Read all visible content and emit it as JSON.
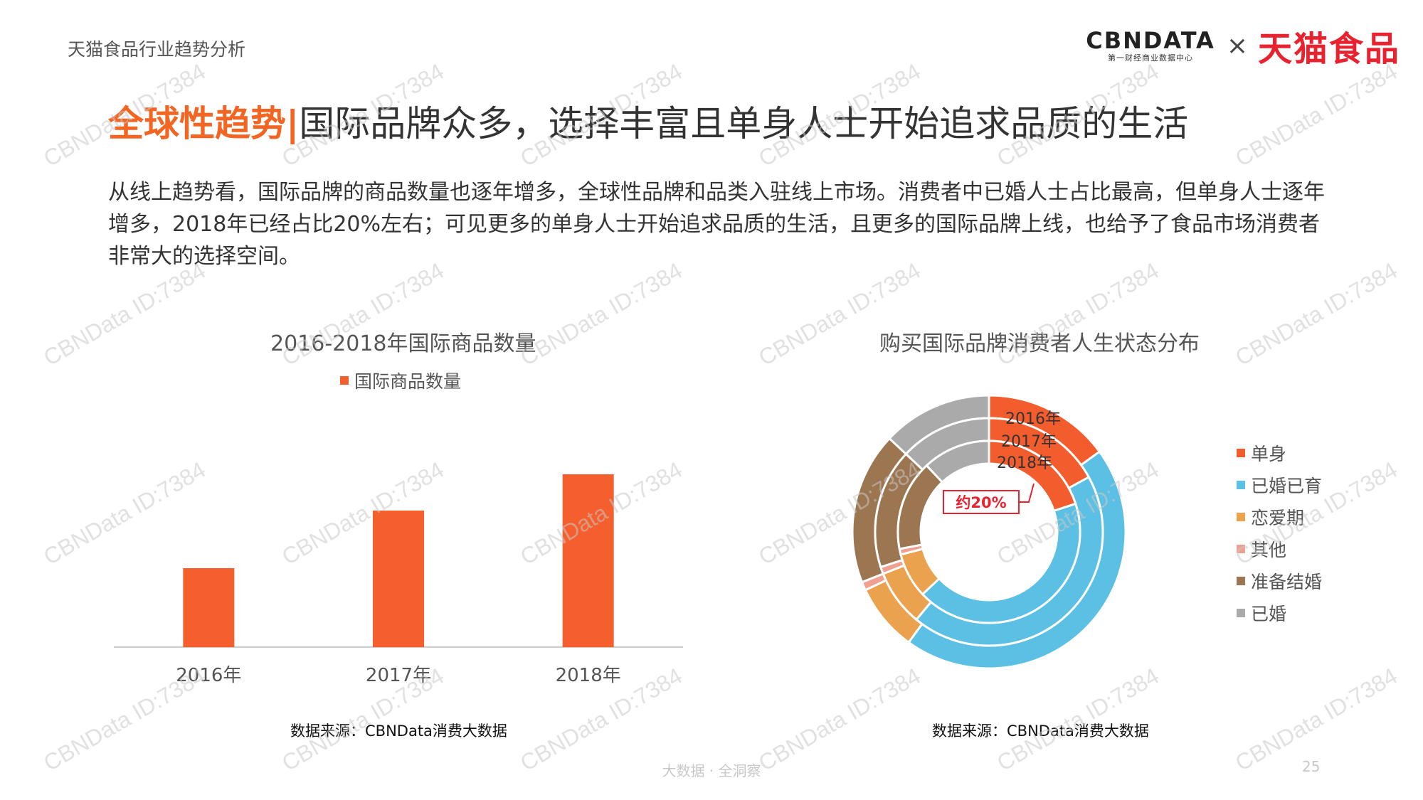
{
  "header": {
    "report_name": "天猫食品行业趋势分析",
    "cbn_logo_text": "CBNDATA",
    "cbn_logo_sub": "第一财经商业数据中心",
    "logo_separator": "×",
    "tmall_logo_text": "天猫食品"
  },
  "title": {
    "highlight": "全球性趋势|",
    "rest": "国际品牌众多，选择丰富且单身人士开始追求品质的生活"
  },
  "body_text": "从线上趋势看，国际品牌的商品数量也逐年增多，全球性品牌和品类入驻线上市场。消费者中已婚人士占比最高，但单身人士逐年增多，2018年已经占比20%左右；可见更多的单身人士开始追求品质的生活，且更多的国际品牌上线，也给予了食品市场消费者非常大的选择空间。",
  "colors": {
    "accent": "#f26522",
    "bar": "#f55e2d",
    "single": "#f35d2d",
    "married_with_kids": "#5bc0e3",
    "dating": "#eaa24e",
    "other": "#f0a090",
    "preparing": "#9b7650",
    "married": "#aaaaaa"
  },
  "chart_data": [
    {
      "type": "bar",
      "title": "2016-2018年国际商品数量",
      "legend": [
        "国际商品数量"
      ],
      "categories": [
        "2016年",
        "2017年",
        "2018年"
      ],
      "series": [
        {
          "name": "国际商品数量",
          "values": [
            37,
            64,
            81
          ]
        }
      ],
      "ylim": [
        0,
        100
      ],
      "y_axis_shown": false,
      "grid": false,
      "legend_position": "top",
      "source": "数据来源：CBNData消费大数据"
    },
    {
      "type": "pie",
      "subtype": "multi-ring donut",
      "title": "购买国际品牌消费者人生状态分布",
      "categories": [
        "单身",
        "已婚已育",
        "恋爱期",
        "其他",
        "准备结婚",
        "已婚"
      ],
      "rings": [
        {
          "label": "2016年",
          "values": [
            15,
            45,
            8,
            1,
            18,
            13
          ]
        },
        {
          "label": "2017年",
          "values": [
            17,
            44,
            8,
            1,
            17,
            13
          ]
        },
        {
          "label": "2018年",
          "values": [
            20,
            43,
            8,
            1,
            16,
            12
          ]
        }
      ],
      "annotation": "约20%",
      "legend_position": "right",
      "source": "数据来源：CBNData消费大数据"
    }
  ],
  "footer": {
    "center_text": "大数据 · 全洞察",
    "page_number": "25"
  },
  "watermark_text": "CBNData ID:7384"
}
